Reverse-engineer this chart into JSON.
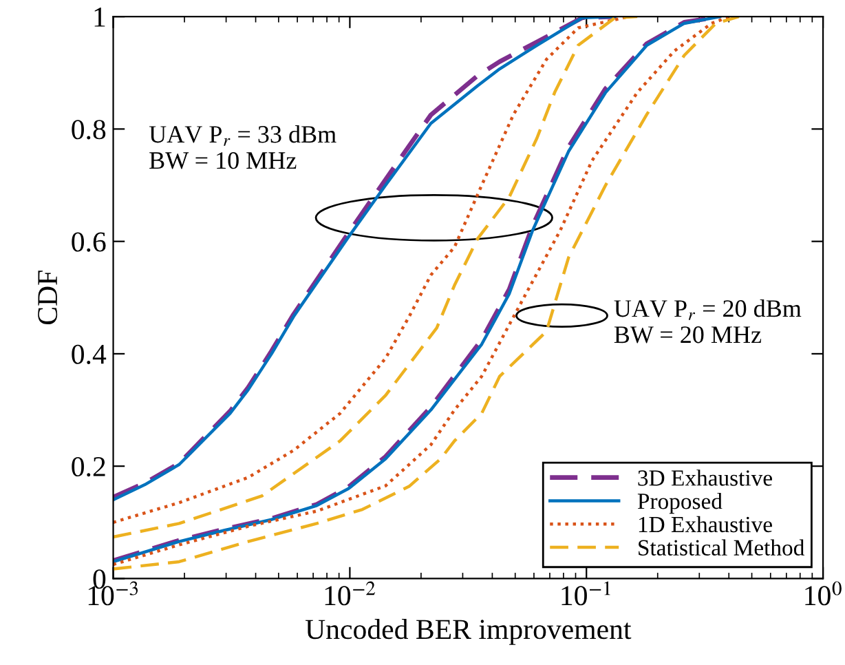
{
  "chart_data": {
    "type": "line",
    "xlabel": "Uncoded BER improvement",
    "ylabel": "CDF",
    "log": "x",
    "xlim": [
      0.001,
      1
    ],
    "ylim": [
      0,
      1
    ],
    "xticks": [
      {
        "value": 0.001,
        "label": "10$^{−3}$"
      },
      {
        "value": 0.01,
        "label": "10$^{−2}$"
      },
      {
        "value": 0.1,
        "label": "10$^{−1}$"
      },
      {
        "value": 1,
        "label": "10$^{0}$"
      }
    ],
    "yticks": [
      0,
      0.2,
      0.4,
      0.6,
      0.8,
      1
    ],
    "grid": false,
    "legend": "bottom right",
    "marker": "none",
    "annotations": [
      "UAV P$_{r}$ = 33 dBm\nBW = 10 MHz",
      "UAV P$_{r}$ = 20 dBm\nBW = 20 MHz"
    ],
    "series": [
      {
        "name": "3D Exhaustive",
        "color": "#7e2f8e",
        "line_style": "dashed",
        "x": [
          0.001,
          0.00136,
          0.0019,
          0.00312,
          0.00372,
          0.00467,
          0.00578,
          0.00987,
          0.01416,
          0.022,
          0.0347,
          0.043,
          0.0618,
          0.096,
          0.132
        ],
        "values": [
          0.145,
          0.17,
          0.205,
          0.298,
          0.34,
          0.405,
          0.47,
          0.615,
          0.71,
          0.825,
          0.895,
          0.92,
          0.955,
          0.998,
          1.0
        ]
      },
      {
        "name": "Proposed",
        "color": "#0072bd",
        "line_style": "solid",
        "x": [
          0.001,
          0.00136,
          0.0019,
          0.00312,
          0.00372,
          0.00467,
          0.00578,
          0.00987,
          0.01416,
          0.022,
          0.0347,
          0.043,
          0.0618,
          0.096,
          0.132
        ],
        "values": [
          0.14,
          0.167,
          0.203,
          0.294,
          0.336,
          0.4,
          0.466,
          0.608,
          0.7,
          0.81,
          0.877,
          0.907,
          0.949,
          0.998,
          1.0
        ]
      },
      {
        "name": "1D Exhaustive",
        "color": "#d95319",
        "line_style": "dotted",
        "x": [
          0.001,
          0.0019,
          0.00372,
          0.00578,
          0.0091,
          0.01416,
          0.0178,
          0.022,
          0.0277,
          0.0361,
          0.0492,
          0.0678,
          0.0923,
          0.151
        ],
        "values": [
          0.1,
          0.135,
          0.18,
          0.228,
          0.294,
          0.392,
          0.466,
          0.54,
          0.59,
          0.7,
          0.826,
          0.924,
          0.98,
          1.0
        ]
      },
      {
        "name": "Statistical Method",
        "color": "#edb120",
        "line_style": "dashed",
        "x": [
          0.001,
          0.0019,
          0.00425,
          0.0091,
          0.01416,
          0.0233,
          0.0277,
          0.0347,
          0.0472,
          0.0618,
          0.0734,
          0.0923,
          0.132,
          0.164
        ],
        "values": [
          0.074,
          0.098,
          0.147,
          0.245,
          0.326,
          0.446,
          0.522,
          0.605,
          0.679,
          0.784,
          0.865,
          0.949,
          0.998,
          1.0
        ]
      },
      {
        "color": "#7e2f8e",
        "line_style": "dashed",
        "x": [
          0.001,
          0.0019,
          0.00296,
          0.00467,
          0.00725,
          0.00987,
          0.01416,
          0.022,
          0.0361,
          0.0472,
          0.0593,
          0.084,
          0.1205,
          0.18,
          0.259,
          0.366
        ],
        "values": [
          0.032,
          0.068,
          0.088,
          0.107,
          0.132,
          0.163,
          0.217,
          0.305,
          0.425,
          0.515,
          0.628,
          0.768,
          0.872,
          0.952,
          0.99,
          1.0
        ]
      },
      {
        "color": "#0072bd",
        "line_style": "solid",
        "x": [
          0.001,
          0.0019,
          0.00296,
          0.00467,
          0.00725,
          0.00987,
          0.01416,
          0.022,
          0.0361,
          0.0472,
          0.0593,
          0.084,
          0.1205,
          0.18,
          0.259,
          0.366
        ],
        "values": [
          0.03,
          0.066,
          0.086,
          0.105,
          0.13,
          0.16,
          0.213,
          0.3,
          0.417,
          0.507,
          0.62,
          0.76,
          0.865,
          0.949,
          0.988,
          1.0
        ]
      },
      {
        "color": "#d95319",
        "line_style": "dotted",
        "x": [
          0.001,
          0.0019,
          0.00372,
          0.00725,
          0.01416,
          0.022,
          0.0277,
          0.0361,
          0.0492,
          0.0776,
          0.1054,
          0.164,
          0.2355,
          0.338,
          0.403
        ],
        "values": [
          0.025,
          0.06,
          0.093,
          0.12,
          0.165,
          0.238,
          0.3,
          0.36,
          0.466,
          0.62,
          0.743,
          0.865,
          0.939,
          0.988,
          1.0
        ]
      },
      {
        "color": "#edb120",
        "line_style": "dashed",
        "x": [
          0.001,
          0.0019,
          0.00372,
          0.00725,
          0.0113,
          0.0178,
          0.0242,
          0.0277,
          0.0361,
          0.043,
          0.0678,
          0.084,
          0.1205,
          0.18,
          0.259,
          0.352,
          0.441
        ],
        "values": [
          0.017,
          0.03,
          0.066,
          0.098,
          0.123,
          0.164,
          0.213,
          0.245,
          0.294,
          0.36,
          0.44,
          0.571,
          0.7,
          0.826,
          0.931,
          0.988,
          1.0
        ]
      }
    ]
  }
}
